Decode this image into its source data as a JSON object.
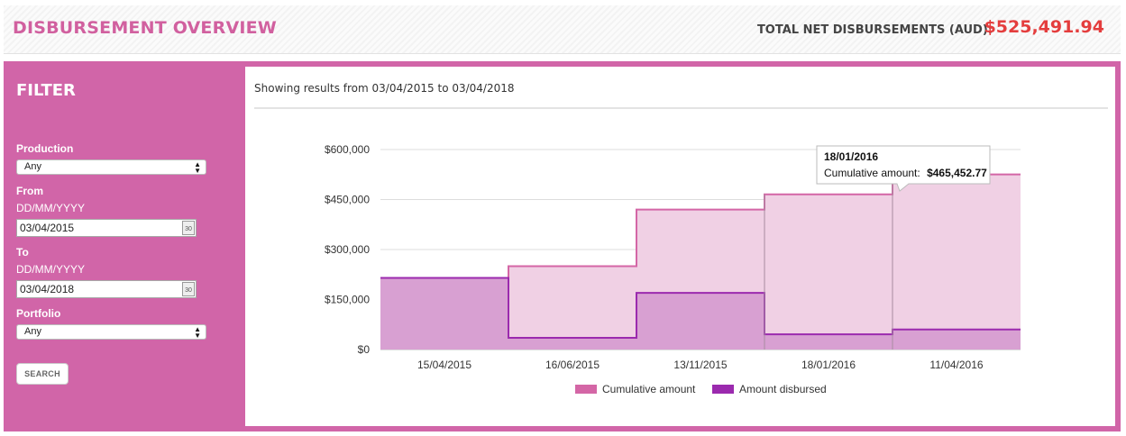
{
  "header": {
    "title": "DISBURSEMENT OVERVIEW",
    "total_label": "TOTAL NET DISBURSEMENTS (AUD):",
    "total_value": "$525,491.94"
  },
  "filter": {
    "title": "FILTER",
    "production_label": "Production",
    "production_value": "Any",
    "from_label": "From",
    "from_format": "DD/MM/YYYY",
    "from_value": "03/04/2015",
    "to_label": "To",
    "to_format": "DD/MM/YYYY",
    "to_value": "03/04/2018",
    "portfolio_label": "Portfolio",
    "portfolio_value": "Any",
    "calendar_icon_text": "30",
    "search_label": "SEARCH"
  },
  "results": {
    "text": "Showing results from 03/04/2015 to 03/04/2018"
  },
  "tooltip": {
    "date": "18/01/2016",
    "label": "Cumulative amount:",
    "value": "$465,452.77"
  },
  "colors": {
    "brand": "#d165a8",
    "total": "#e43d3d",
    "cumulative_fill": "#f0d0e4",
    "cumulative_line": "#d466a6",
    "disbursed_fill": "#d8a0d2",
    "disbursed_line": "#9b2aae"
  },
  "chart_data": {
    "type": "area",
    "step": true,
    "categories": [
      "15/04/2015",
      "16/06/2015",
      "13/11/2015",
      "18/01/2016",
      "11/04/2016"
    ],
    "yticks": [
      "$0",
      "$150,000",
      "$300,000",
      "$450,000",
      "$600,000"
    ],
    "ylim": [
      0,
      600000
    ],
    "grid": true,
    "legend": "bottom",
    "series": [
      {
        "name": "Cumulative amount",
        "values": [
          215000,
          250000,
          420000,
          465452.77,
          525491.94
        ]
      },
      {
        "name": "Amount disbursed",
        "values": [
          215000,
          35000,
          170000,
          45452.77,
          60039.17
        ]
      }
    ]
  }
}
